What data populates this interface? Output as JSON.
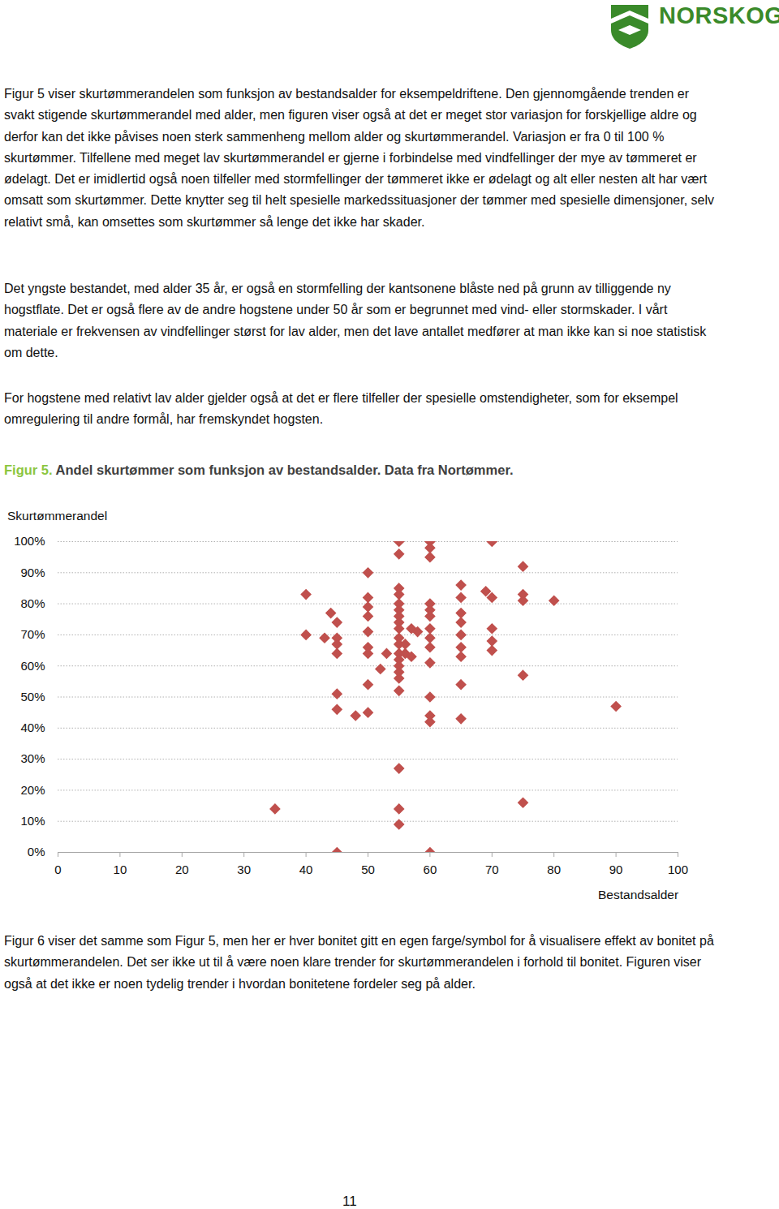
{
  "header": {
    "logo_text": "NORSKOG"
  },
  "paragraphs_before": [
    "Figur 5 viser skurtømmerandelen som funksjon av bestandsalder for eksempeldriftene. Den gjennomgående trenden er svakt stigende skurtømmerandel med alder, men figuren viser også at det er meget stor variasjon for forskjellige aldre og derfor kan det ikke påvises noen sterk sammenheng mellom alder og skurtømmerandel. Variasjon er fra 0 til 100 % skurtømmer. Tilfellene med meget lav skurtømmerandel er gjerne i forbindelse med vindfellinger der mye av tømmeret er ødelagt. Det er imidlertid også noen tilfeller med stormfellinger der tømmeret ikke er ødelagt og alt eller nesten alt har vært omsatt som skurtømmer. Dette knytter seg til helt spesielle markedssituasjoner der tømmer med spesielle dimensjoner, selv relativt små, kan omsettes som skurtømmer så lenge det ikke har skader.",
    "Det yngste bestandet, med alder 35 år, er også en stormfelling der kantsonene blåste ned på grunn av tilliggende ny hogstflate. Det er også flere av de andre hogstene under 50 år som er begrunnet med vind- eller stormskader. I vårt materiale er frekvensen av vindfellinger størst for lav alder, men det lave antallet medfører at man ikke kan si noe statistisk om dette.",
    "For hogstene med relativt lav alder gjelder også at det er flere tilfeller der spesielle omstendigheter, som for eksempel omregulering til andre formål, har fremskyndet hogsten."
  ],
  "figure_label": "Figur 5.",
  "figure_caption": "Andel skurtømmer som funksjon av bestandsalder. Data fra Nortømmer.",
  "chart_data": {
    "type": "scatter",
    "x_label": "Bestandsalder",
    "y_label": "Skurtømmerandel",
    "x": [
      35,
      40,
      40,
      43,
      44,
      45,
      45,
      45,
      45,
      45,
      45,
      45,
      48,
      50,
      50,
      50,
      50,
      50,
      50,
      50,
      50,
      50,
      52,
      53,
      55,
      55,
      55,
      55,
      55,
      55,
      55,
      55,
      55,
      55,
      55,
      55,
      55,
      55,
      55,
      55,
      55,
      55,
      55,
      55,
      56,
      56,
      57,
      58,
      57,
      60,
      60,
      60,
      60,
      60,
      60,
      60,
      60,
      60,
      60,
      60,
      60,
      60,
      60,
      65,
      65,
      65,
      65,
      65,
      65,
      65,
      65,
      65,
      69,
      70,
      70,
      70,
      70,
      70,
      75,
      75,
      75,
      75,
      75,
      80,
      90
    ],
    "values": [
      14,
      83,
      70,
      69,
      77,
      74,
      69,
      67,
      64,
      51,
      46,
      0,
      44,
      90,
      82,
      79,
      76,
      71,
      66,
      64,
      54,
      45,
      59,
      64,
      100,
      96,
      85,
      83,
      80,
      78,
      76,
      74,
      72,
      69,
      67,
      64,
      62,
      60,
      58,
      56,
      52,
      27,
      14,
      9,
      67,
      64,
      72,
      71,
      63,
      100,
      98,
      95,
      80,
      78,
      76,
      72,
      69,
      66,
      61,
      50,
      44,
      42,
      0,
      86,
      82,
      77,
      74,
      70,
      66,
      63,
      54,
      43,
      84,
      82,
      100,
      72,
      68,
      65,
      92,
      83,
      81,
      57,
      16,
      81,
      47
    ],
    "color": "#c0504d",
    "marker": "diamond",
    "xlim": [
      0,
      100
    ],
    "xticks": [
      0,
      10,
      20,
      30,
      40,
      50,
      60,
      70,
      80,
      90,
      100
    ],
    "ylim": [
      0,
      100
    ],
    "yticks": [
      {
        "value": 0,
        "label": "0%"
      },
      {
        "value": 10,
        "label": "10%"
      },
      {
        "value": 20,
        "label": "20%"
      },
      {
        "value": 30,
        "label": "30%"
      },
      {
        "value": 40,
        "label": "40%"
      },
      {
        "value": 50,
        "label": "50%"
      },
      {
        "value": 60,
        "label": "60%"
      },
      {
        "value": 70,
        "label": "70%"
      },
      {
        "value": 80,
        "label": "80%"
      },
      {
        "value": 90,
        "label": "90%"
      },
      {
        "value": 100,
        "label": "100%"
      }
    ],
    "grid": true
  },
  "paragraphs_after": [
    "Figur 6 viser det samme som Figur 5, men her er hver bonitet gitt en egen farge/symbol for å visualisere effekt av bonitet på skurtømmerandelen. Det ser ikke ut til å være noen klare trender for skurtømmerandelen i forhold til bonitet. Figuren viser også at det ikke er noen tydelig trender i hvordan bonitetene fordeler seg på alder."
  ],
  "page_number": "11"
}
